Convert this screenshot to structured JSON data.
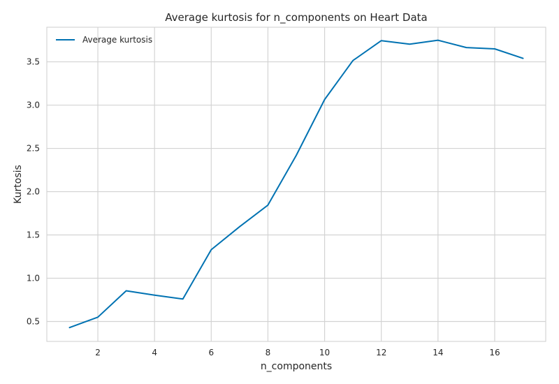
{
  "chart_data": {
    "type": "line",
    "title": "Average kurtosis for n_components on Heart Data",
    "xlabel": "n_components",
    "ylabel": "Kurtosis",
    "x": [
      1,
      2,
      3,
      4,
      5,
      6,
      7,
      8,
      9,
      10,
      11,
      12,
      13,
      14,
      15,
      16,
      17
    ],
    "series": [
      {
        "name": "Average kurtosis",
        "color": "#0072b2",
        "values": [
          0.43,
          0.55,
          0.855,
          0.805,
          0.76,
          1.33,
          1.595,
          1.845,
          2.42,
          3.065,
          3.515,
          3.745,
          3.705,
          3.75,
          3.665,
          3.65,
          3.54
        ]
      }
    ],
    "xlim": [
      0.2,
      17.8
    ],
    "ylim": [
      0.27,
      3.9
    ],
    "xticks": [
      2,
      4,
      6,
      8,
      10,
      12,
      14,
      16
    ],
    "yticks": [
      0.5,
      1.0,
      1.5,
      2.0,
      2.5,
      3.0,
      3.5
    ],
    "ytick_labels": [
      "0.5",
      "1.0",
      "1.5",
      "2.0",
      "2.5",
      "3.0",
      "3.5"
    ],
    "grid": true,
    "legend_position": "top-left"
  }
}
